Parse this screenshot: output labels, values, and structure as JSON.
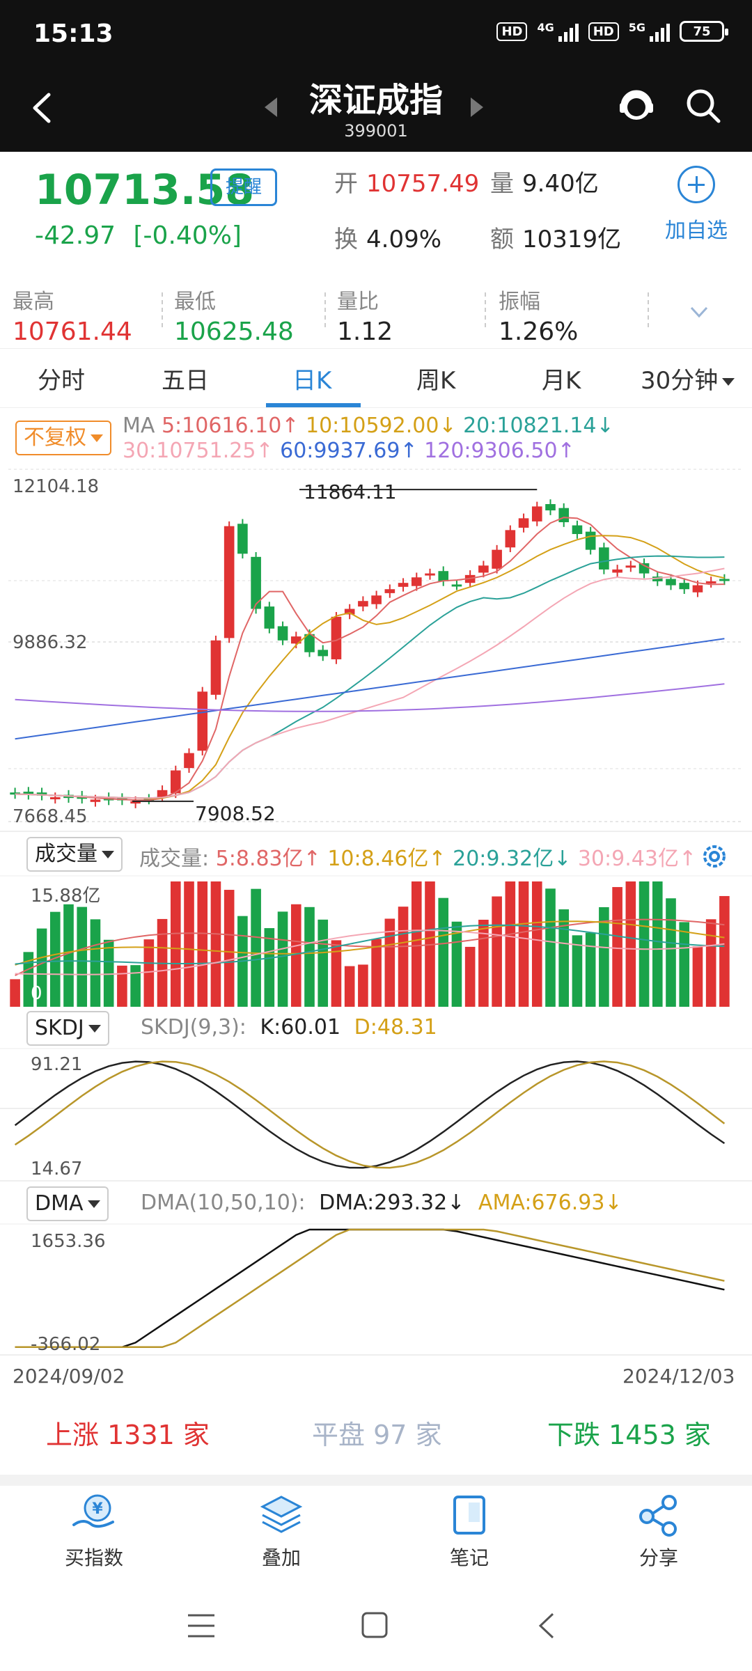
{
  "status_bar": {
    "time": "15:13",
    "net1": "4G",
    "net2": "5G",
    "hd": "HD",
    "battery": "75"
  },
  "header": {
    "title": "深证成指",
    "code": "399001"
  },
  "quote": {
    "price": "10713.58",
    "remind_label": "提醒",
    "change": "-42.97",
    "change_pct": "[-0.40%]",
    "open_label": "开",
    "open": "10757.49",
    "volume_label": "量",
    "volume": "9.40亿",
    "turnover_label": "换",
    "turnover": "4.09%",
    "amount_label": "额",
    "amount": "10319亿",
    "add_watch_label": "加自选"
  },
  "stats": [
    {
      "label": "最高",
      "value": "10761.44",
      "color": "#e03333"
    },
    {
      "label": "最低",
      "value": "10625.48",
      "color": "#1aa34a"
    },
    {
      "label": "量比",
      "value": "1.12",
      "color": "#222222"
    },
    {
      "label": "振幅",
      "value": "1.26%",
      "color": "#222222"
    }
  ],
  "tabs": [
    {
      "label": "分时"
    },
    {
      "label": "五日"
    },
    {
      "label": "日K"
    },
    {
      "label": "周K"
    },
    {
      "label": "月K"
    },
    {
      "label": "30分钟"
    }
  ],
  "active_tab": "日K",
  "kline": {
    "adjust_label": "不复权",
    "ma_title": "MA",
    "ma": [
      {
        "text": "5:10616.10↑",
        "color": "#e06666"
      },
      {
        "text": "10:10592.00↓",
        "color": "#d4a017"
      },
      {
        "text": "20:10821.14↓",
        "color": "#2aa198"
      },
      {
        "text": "30:10751.25↑",
        "color": "#f4a6b4"
      },
      {
        "text": "60:9937.69↑",
        "color": "#3a6ad4"
      },
      {
        "text": "120:9306.50↑",
        "color": "#a070e0"
      }
    ],
    "ymax_label": "12104.18",
    "ymid_label": "9886.32",
    "ymin_label": "7668.45",
    "high_mark": "11864.11",
    "low_mark": "7908.52"
  },
  "volume_panel": {
    "chip": "成交量",
    "title": "成交量:",
    "ma": [
      {
        "text": "5:8.83亿↑",
        "color": "#e06666"
      },
      {
        "text": "10:8.46亿↑",
        "color": "#d4a017"
      },
      {
        "text": "20:9.32亿↓",
        "color": "#2aa198"
      },
      {
        "text": "30:9.43亿↑",
        "color": "#f4a6b4"
      }
    ],
    "ymax_label": "15.88亿",
    "ymin_label": "0"
  },
  "skdj_panel": {
    "chip": "SKDJ",
    "params": "SKDJ(9,3):",
    "k": "K:60.01",
    "d": "D:48.31",
    "ymax_label": "91.21",
    "ymin_label": "14.67"
  },
  "dma_panel": {
    "chip": "DMA",
    "params": "DMA(10,50,10):",
    "dma": "DMA:293.32↓",
    "ama": "AMA:676.93↓",
    "ymax_label": "1653.36",
    "ymin_label": "-366.02"
  },
  "dates": {
    "start": "2024/09/02",
    "end": "2024/12/03"
  },
  "breadth": {
    "up_label": "上涨",
    "up_count": "1331",
    "up_unit": "家",
    "flat_label": "平盘",
    "flat_count": "97",
    "flat_unit": "家",
    "down_label": "下跌",
    "down_count": "1453",
    "down_unit": "家"
  },
  "bottom_nav": [
    {
      "label": "买指数",
      "icon": "buy-index-icon"
    },
    {
      "label": "叠加",
      "icon": "layers-icon"
    },
    {
      "label": "笔记",
      "icon": "notes-icon"
    },
    {
      "label": "分享",
      "icon": "share-icon"
    }
  ],
  "chart_data": {
    "type": "candlestick",
    "x_range": [
      "2024/09/02",
      "2024/12/03"
    ],
    "y_range": [
      7668.45,
      12104.18
    ],
    "annotations": {
      "high": 11864.11,
      "low": 7908.52
    },
    "candles_close_approx": [
      8000,
      7990,
      7980,
      7960,
      7950,
      7940,
      7930,
      7920,
      7920,
      7910,
      7930,
      8050,
      8300,
      8520,
      9300,
      9950,
      11400,
      11050,
      10350,
      10100,
      9950,
      10000,
      9800,
      9750,
      10250,
      10350,
      10450,
      10520,
      10600,
      10680,
      10750,
      10800,
      10700,
      10650,
      10780,
      10900,
      11100,
      11350,
      11500,
      11650,
      11600,
      11450,
      11300,
      11100,
      10850,
      10850,
      10900,
      10800,
      10700,
      10650,
      10600,
      10650,
      10700,
      10713.58
    ]
  }
}
